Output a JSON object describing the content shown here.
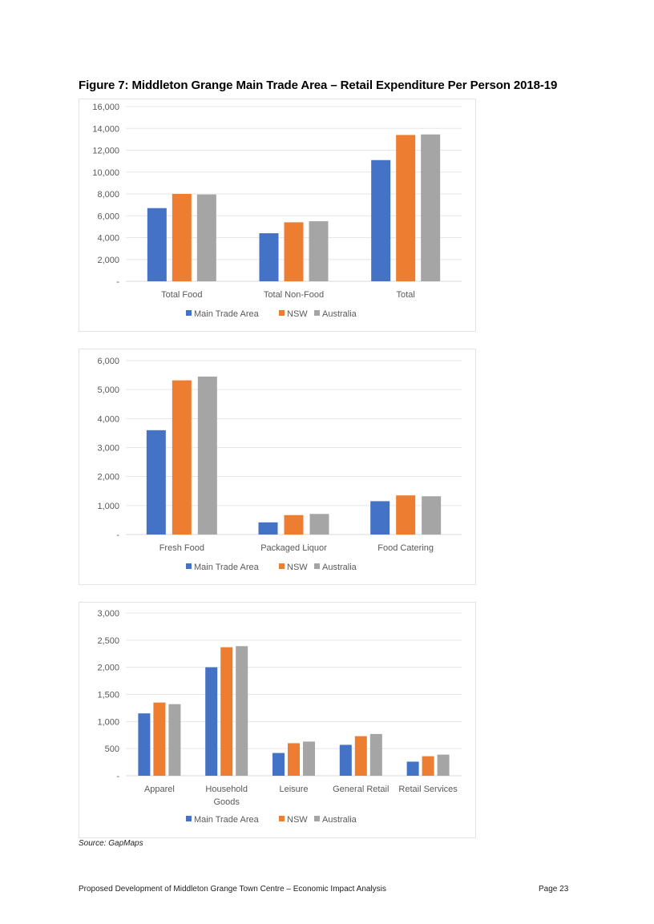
{
  "figure": {
    "title": "Figure 7: Middleton Grange Main Trade Area – Retail Expenditure Per Person 2018-19",
    "source": "Source: GapMaps"
  },
  "footer": {
    "left": "Proposed Development of Middleton Grange Town Centre – Economic Impact Analysis",
    "right": "Page 23"
  },
  "colors": {
    "main_trade_area": "#4472C4",
    "nsw": "#ED7D31",
    "australia": "#A5A5A5"
  },
  "chart_data": [
    {
      "type": "bar",
      "categories": [
        [
          "Total Food"
        ],
        [
          "Total Non-Food"
        ],
        [
          "Total"
        ]
      ],
      "series": [
        {
          "name": "Main Trade Area",
          "values": [
            6700,
            4400,
            11100
          ]
        },
        {
          "name": "NSW",
          "values": [
            8000,
            5400,
            13400
          ]
        },
        {
          "name": "Australia",
          "values": [
            7950,
            5500,
            13450
          ]
        }
      ],
      "ylim": [
        0,
        16000
      ],
      "yticks": [
        0,
        2000,
        4000,
        6000,
        8000,
        10000,
        12000,
        14000,
        16000
      ],
      "ytick_labels": [
        "-",
        "2,000",
        "4,000",
        "6,000",
        "8,000",
        "10,000",
        "12,000",
        "14,000",
        "16,000"
      ],
      "legend": "bottom",
      "grid": true
    },
    {
      "type": "bar",
      "categories": [
        [
          "Fresh Food"
        ],
        [
          "Packaged Liquor"
        ],
        [
          "Food Catering"
        ]
      ],
      "series": [
        {
          "name": "Main Trade Area",
          "values": [
            3600,
            420,
            1150
          ]
        },
        {
          "name": "NSW",
          "values": [
            5320,
            670,
            1350
          ]
        },
        {
          "name": "Australia",
          "values": [
            5450,
            710,
            1320
          ]
        }
      ],
      "ylim": [
        0,
        6000
      ],
      "yticks": [
        0,
        1000,
        2000,
        3000,
        4000,
        5000,
        6000
      ],
      "ytick_labels": [
        "-",
        "1,000",
        "2,000",
        "3,000",
        "4,000",
        "5,000",
        "6,000"
      ],
      "legend": "bottom",
      "grid": true
    },
    {
      "type": "bar",
      "categories": [
        [
          "Apparel"
        ],
        [
          "Household",
          "Goods"
        ],
        [
          "Leisure"
        ],
        [
          "General Retail"
        ],
        [
          "Retail Services"
        ]
      ],
      "series": [
        {
          "name": "Main Trade Area",
          "values": [
            1150,
            2000,
            420,
            570,
            260
          ]
        },
        {
          "name": "NSW",
          "values": [
            1350,
            2370,
            600,
            730,
            360
          ]
        },
        {
          "name": "Australia",
          "values": [
            1320,
            2390,
            630,
            770,
            390
          ]
        }
      ],
      "ylim": [
        0,
        3000
      ],
      "yticks": [
        0,
        500,
        1000,
        1500,
        2000,
        2500,
        3000
      ],
      "ytick_labels": [
        "-",
        "500",
        "1,000",
        "1,500",
        "2,000",
        "2,500",
        "3,000"
      ],
      "legend": "bottom",
      "grid": true
    }
  ]
}
